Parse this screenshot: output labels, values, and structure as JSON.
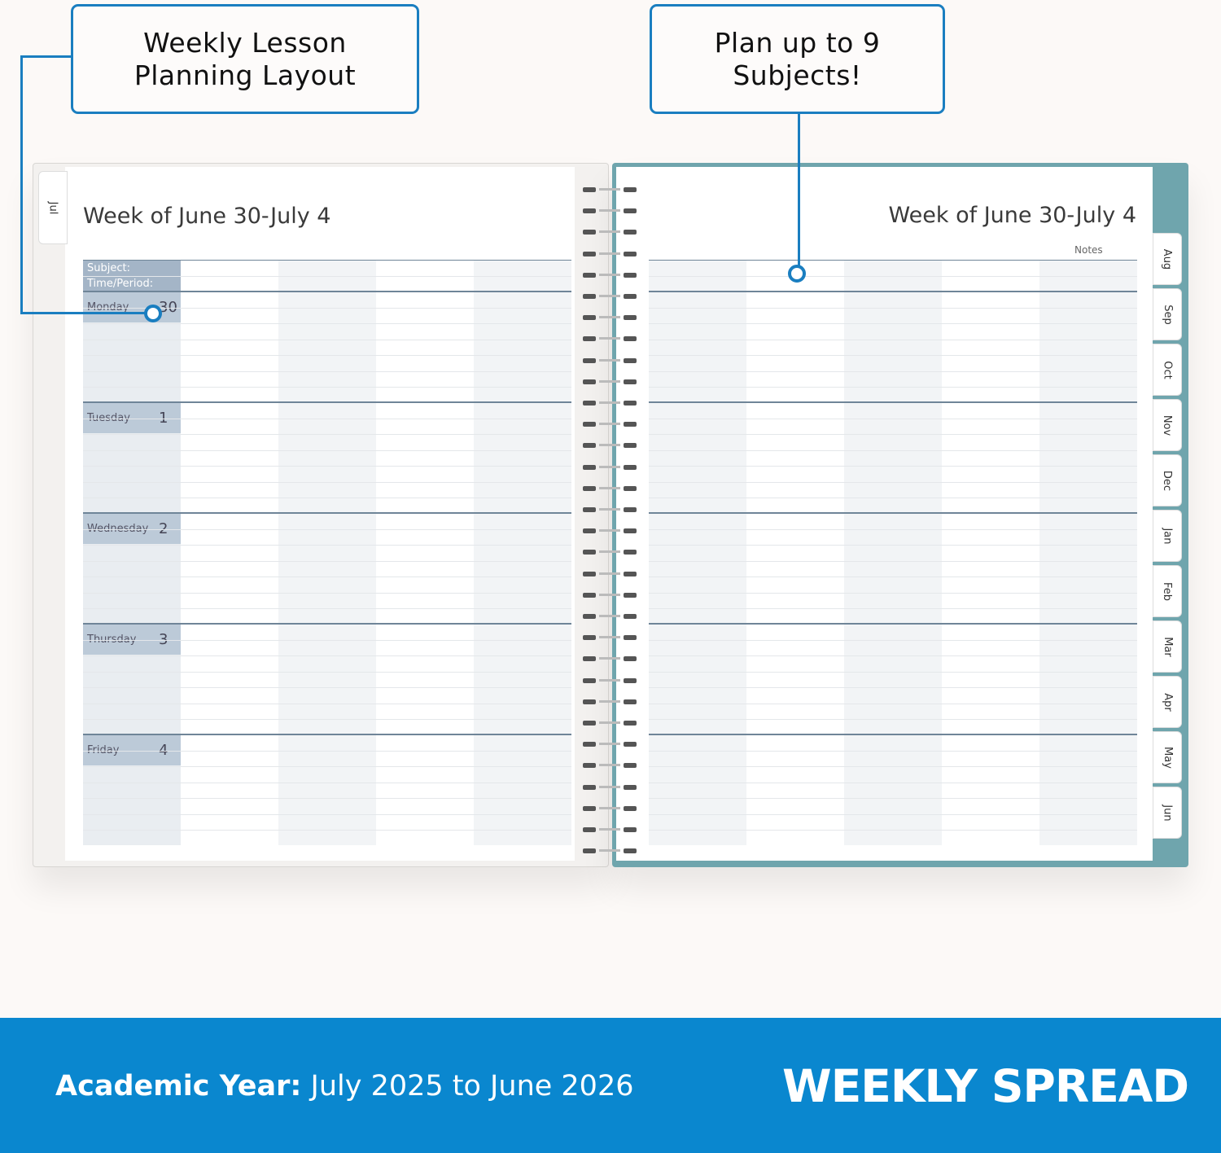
{
  "callouts": [
    {
      "line1": "Weekly Lesson",
      "line2": "Planning Layout"
    },
    {
      "line1": "Plan up to 9",
      "line2": "Subjects!"
    }
  ],
  "left_page": {
    "tab": "Jul",
    "title": "Week of June 30-July 4",
    "subject_label": "Subject:",
    "time_label": "Time/Period:",
    "days": [
      {
        "name": "Monday",
        "num": "30"
      },
      {
        "name": "Tuesday",
        "num": "1"
      },
      {
        "name": "Wednesday",
        "num": "2"
      },
      {
        "name": "Thursday",
        "num": "3"
      },
      {
        "name": "Friday",
        "num": "4"
      }
    ]
  },
  "right_page": {
    "title": "Week of June 30-July 4",
    "notes_label": "Notes",
    "tabs": [
      "Aug",
      "Sep",
      "Oct",
      "Nov",
      "Dec",
      "Jan",
      "Feb",
      "Mar",
      "Apr",
      "May",
      "Jun"
    ]
  },
  "banner": {
    "label": "Academic Year:",
    "range": "July 2025 to June 2026",
    "headline": "WEEKLY SPREAD"
  },
  "colors": {
    "accent": "#1a7ec0",
    "banner": "#0a87cf",
    "cover": "#6fa5ad",
    "day_header": "#a9b8c9"
  }
}
